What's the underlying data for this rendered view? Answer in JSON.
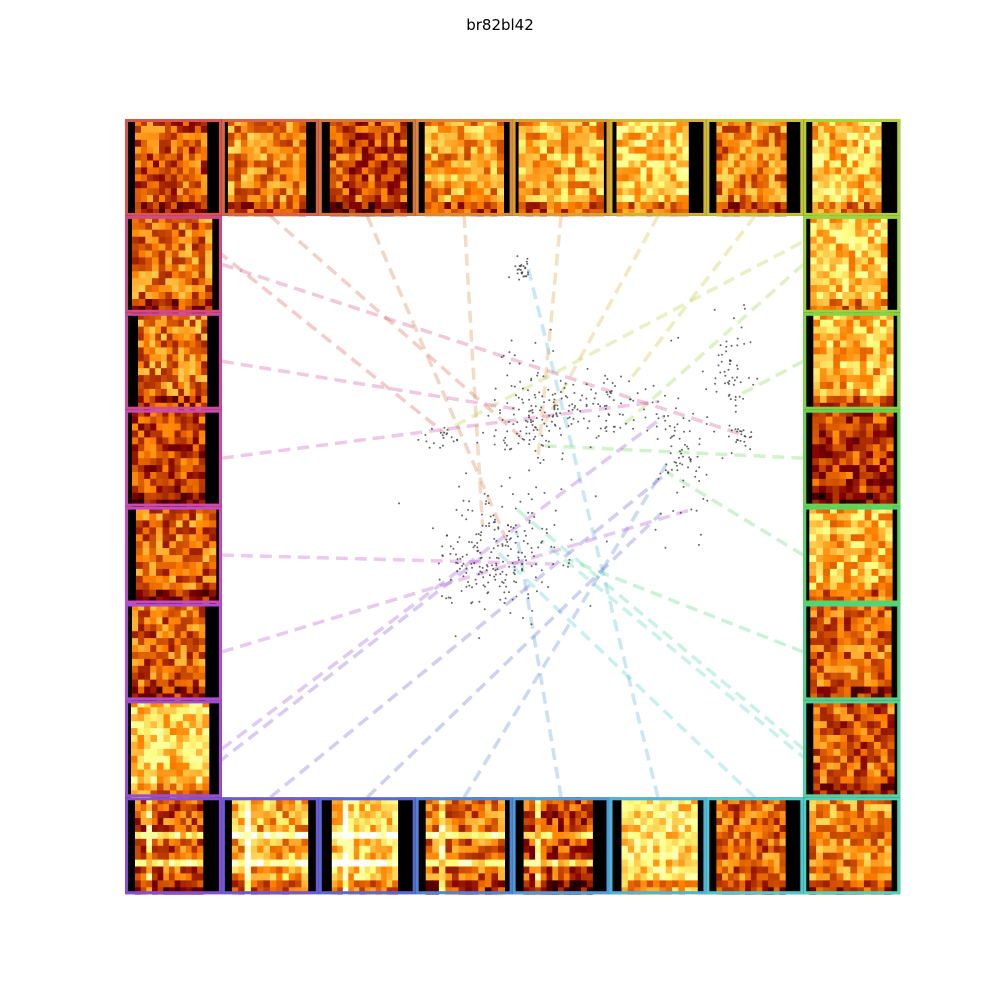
{
  "title": "br82bl42",
  "chart_data": {
    "type": "scatter",
    "title": "br82bl42",
    "xlabel": "",
    "ylabel": "",
    "grid": false,
    "axes_visible": false,
    "point_color": "#333333",
    "clusters": [
      {
        "id": "c1",
        "cx": 0.47,
        "cy": 0.585,
        "sx": 0.055,
        "sy": 0.05,
        "n": 230
      },
      {
        "id": "c2",
        "cx": 0.53,
        "cy": 0.35,
        "sx": 0.035,
        "sy": 0.055,
        "n": 120
      },
      {
        "id": "c3",
        "cx": 0.64,
        "cy": 0.335,
        "sx": 0.055,
        "sy": 0.03,
        "n": 110
      },
      {
        "id": "c4",
        "cx": 0.785,
        "cy": 0.405,
        "sx": 0.02,
        "sy": 0.065,
        "n": 75
      },
      {
        "id": "c5",
        "cx": 0.875,
        "cy": 0.28,
        "sx": 0.02,
        "sy": 0.06,
        "n": 60
      },
      {
        "id": "c6",
        "cx": 0.515,
        "cy": 0.095,
        "sx": 0.008,
        "sy": 0.008,
        "n": 25
      },
      {
        "id": "c7",
        "cx": 0.89,
        "cy": 0.385,
        "sx": 0.015,
        "sy": 0.01,
        "n": 20
      },
      {
        "id": "c8",
        "cx": 0.375,
        "cy": 0.385,
        "sx": 0.015,
        "sy": 0.012,
        "n": 20
      }
    ],
    "spectrogram_tiles": {
      "count": 32,
      "colormap": "afmhot",
      "ring_colors": [
        "#d9534f",
        "#d86a42",
        "#d98838",
        "#d9a632",
        "#c9c233",
        "#a8d43a",
        "#84d545",
        "#5ed455",
        "#50d37c",
        "#4fd3a6",
        "#4fcfcf",
        "#4fb0d8",
        "#4f8bd6",
        "#5a66d4",
        "#7a52d1",
        "#9c4fcf",
        "#c04ccc",
        "#cc4ab0",
        "#cf4a8f",
        "#d24b70"
      ],
      "edge_color_start": "#d9534f",
      "edge_color_top_right": "#84d545",
      "edge_color_bottom_right": "#4fcfcf",
      "edge_color_bottom_left": "#8e4fcf",
      "connector_style": "dashed",
      "connector_opacity": 0.3
    }
  }
}
